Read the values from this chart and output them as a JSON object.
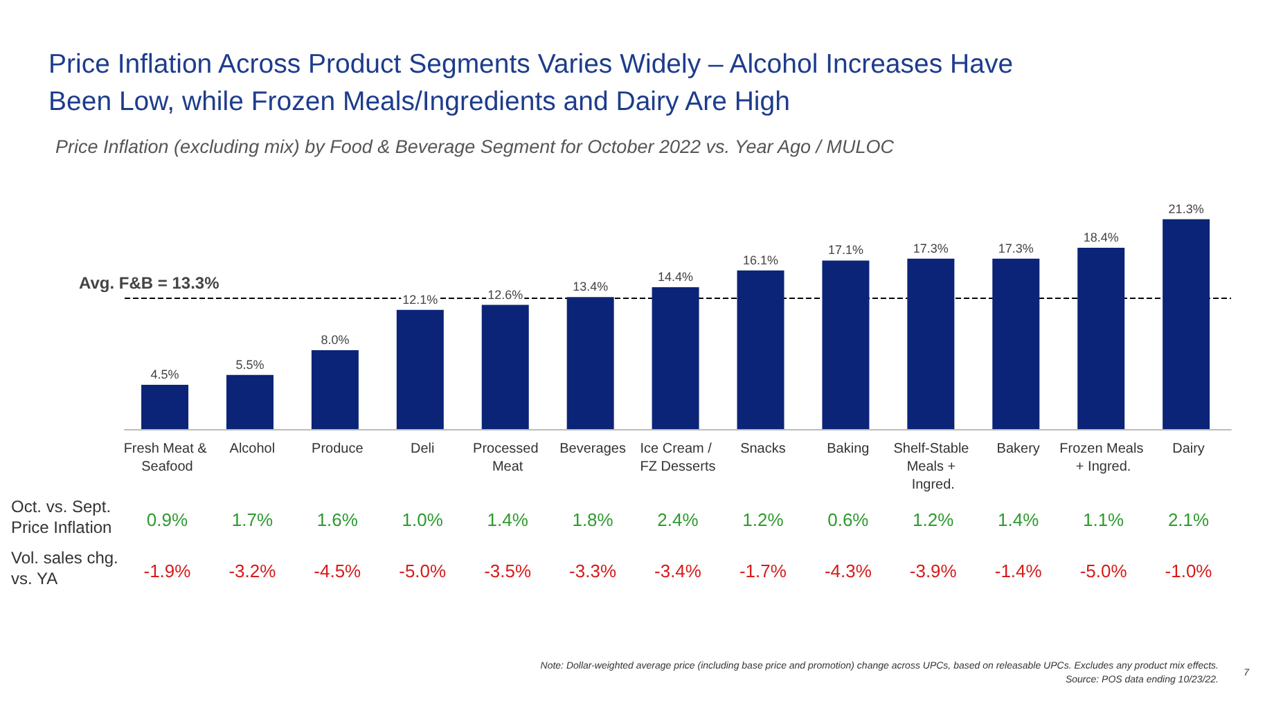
{
  "chart_data": {
    "type": "bar",
    "title": "Price Inflation Across Product Segments Varies Widely – Alcohol Increases Have Been Low, while Frozen Meals/Ingredients and Dairy Are High",
    "subtitle": "Price Inflation (excluding mix) by Food & Beverage Segment for October 2022 vs. Year Ago / MULOC",
    "categories": [
      "Fresh Meat & Seafood",
      "Alcohol",
      "Produce",
      "Deli",
      "Processed Meat",
      "Beverages",
      "Ice Cream / FZ Desserts",
      "Snacks",
      "Baking",
      "Shelf-Stable Meals + Ingred.",
      "Bakery",
      "Frozen Meals + Ingred.",
      "Dairy"
    ],
    "values": [
      4.5,
      5.5,
      8.0,
      12.1,
      12.6,
      13.4,
      14.4,
      16.1,
      17.1,
      17.3,
      17.3,
      18.4,
      21.3
    ],
    "value_labels": [
      "4.5%",
      "5.5%",
      "8.0%",
      "12.1%",
      "12.6%",
      "13.4%",
      "14.4%",
      "16.1%",
      "17.1%",
      "17.3%",
      "17.3%",
      "18.4%",
      "21.3%"
    ],
    "color": "#0b2477",
    "ref_lines": [
      {
        "axis": "y",
        "value": 13.3,
        "label": "Avg. F&B = 13.3%",
        "color": "#000000",
        "line_style": "dashed"
      }
    ],
    "annotations": [
      "Oct. vs. Sept. Price Inflation",
      "0.9%",
      "1.7%",
      "1.6%",
      "1.0%",
      "1.4%",
      "1.8%",
      "2.4%",
      "1.2%",
      "0.6%",
      "1.2%",
      "1.4%",
      "1.1%",
      "2.1%",
      "Vol. sales chg. vs. YA",
      "-1.9%",
      "-3.2%",
      "-4.5%",
      "-5.0%",
      "-3.5%",
      "-3.3%",
      "-3.4%",
      "-1.7%",
      "-4.3%",
      "-3.9%",
      "-1.4%",
      "-5.0%",
      "-1.0%",
      "Note: Dollar-weighted average price (including base price and promotion) change across UPCs, based on releasable UPCs. Excludes any product mix effects.",
      "Source: POS data ending 10/23/22.",
      "7"
    ],
    "grid": false
  }
}
